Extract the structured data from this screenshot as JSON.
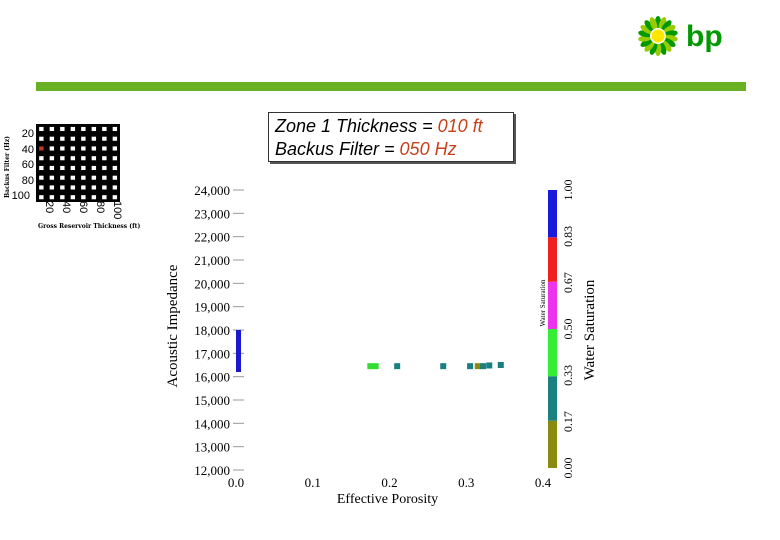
{
  "logo": {
    "text": "bp",
    "sunflower_colors": [
      "#009900",
      "#99cc00",
      "#ffe600"
    ]
  },
  "header": {
    "bar_color": "#6ab023"
  },
  "grid_panel": {
    "title_y": "Backus Filter (Hz)",
    "title_x": "Gross Reservoir Thickness (ft)",
    "y_ticks": [
      "20",
      "40",
      "60",
      "80",
      "100"
    ],
    "x_ticks": [
      "20",
      "40",
      "60",
      "80",
      "100"
    ],
    "rows": 8,
    "cols": 8,
    "selected_cell": {
      "row": 2,
      "col": 0
    },
    "selected_color": "#c0392b"
  },
  "title_box": {
    "zone_prefix": "Zone 1 Thickness = ",
    "zone_value": "010 ft",
    "filter_prefix": "Backus Filter = ",
    "filter_value": "050 Hz"
  },
  "chart_data": {
    "type": "scatter",
    "xlabel": "Effective Porosity",
    "ylabel": "Acoustic Impedance",
    "xlim": [
      0.0,
      0.4
    ],
    "ylim": [
      12000,
      24000
    ],
    "x_ticks": [
      "0.0",
      "0.1",
      "0.2",
      "0.3",
      "0.4"
    ],
    "y_ticks": [
      "12,000",
      "13,000",
      "14,000",
      "15,000",
      "16,000",
      "17,000",
      "18,000",
      "19,000",
      "20,000",
      "21,000",
      "22,000",
      "23,000",
      "24,000"
    ],
    "points": [
      {
        "x": 0.175,
        "y": 16450,
        "color": "#33dd33"
      },
      {
        "x": 0.182,
        "y": 16450,
        "color": "#33dd33"
      },
      {
        "x": 0.21,
        "y": 16450,
        "color": "#1a7f80"
      },
      {
        "x": 0.27,
        "y": 16450,
        "color": "#1a7f80"
      },
      {
        "x": 0.305,
        "y": 16450,
        "color": "#1a7f80"
      },
      {
        "x": 0.315,
        "y": 16450,
        "color": "#8a8a10"
      },
      {
        "x": 0.322,
        "y": 16450,
        "color": "#1a7f80"
      },
      {
        "x": 0.33,
        "y": 16480,
        "color": "#1a7f80"
      },
      {
        "x": 0.345,
        "y": 16500,
        "color": "#1a7f80"
      }
    ],
    "shale_bar": {
      "x": 0.0,
      "y_from": 16200,
      "y_to": 18000,
      "color": "#1a1acc"
    },
    "colorbar": {
      "label": "Water Saturation",
      "inner_label": "Water Saturation",
      "ticks": [
        "0.00",
        "0.17",
        "0.33",
        "0.50",
        "0.67",
        "0.83",
        "1.00"
      ],
      "segments": [
        {
          "from": 0.0,
          "to": 0.17,
          "color": "#8a8a10"
        },
        {
          "from": 0.17,
          "to": 0.33,
          "color": "#1a8080"
        },
        {
          "from": 0.33,
          "to": 0.5,
          "color": "#33ee33"
        },
        {
          "from": 0.5,
          "to": 0.67,
          "color": "#ee33ee"
        },
        {
          "from": 0.67,
          "to": 0.83,
          "color": "#ee2020"
        },
        {
          "from": 0.83,
          "to": 1.0,
          "color": "#1a1add"
        }
      ]
    }
  }
}
